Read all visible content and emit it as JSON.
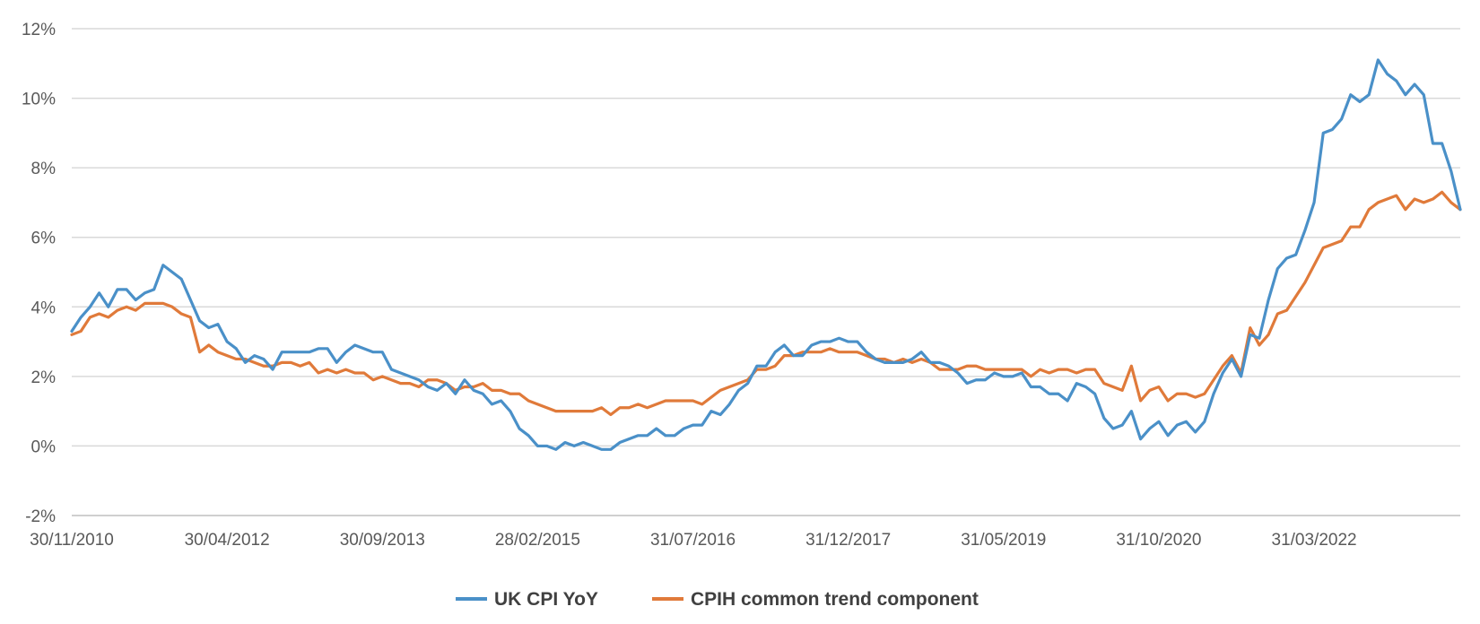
{
  "chart_data": {
    "type": "line",
    "title": "",
    "xlabel": "",
    "ylabel": "",
    "ylim": [
      -2,
      12
    ],
    "y_ticks": [
      -2,
      0,
      2,
      4,
      6,
      8,
      10,
      12
    ],
    "y_tick_labels": [
      "-2%",
      "0%",
      "2%",
      "4%",
      "6%",
      "8%",
      "10%",
      "12%"
    ],
    "x_tick_labels": [
      "30/11/2010",
      "30/04/2012",
      "30/09/2013",
      "28/02/2015",
      "31/07/2016",
      "31/12/2017",
      "31/05/2019",
      "31/10/2020",
      "31/03/2022"
    ],
    "x_start": "30/11/2010",
    "x_end": "31/05/2023",
    "frequency": "monthly",
    "grid": true,
    "legend_position": "bottom",
    "series": [
      {
        "name": "UK CPI YoY",
        "color": "#4a90c8",
        "values": [
          3.3,
          3.7,
          4.0,
          4.4,
          4.0,
          4.5,
          4.5,
          4.2,
          4.4,
          4.5,
          5.2,
          5.0,
          4.8,
          4.2,
          3.6,
          3.4,
          3.5,
          3.0,
          2.8,
          2.4,
          2.6,
          2.5,
          2.2,
          2.7,
          2.7,
          2.7,
          2.7,
          2.8,
          2.8,
          2.4,
          2.7,
          2.9,
          2.8,
          2.7,
          2.7,
          2.2,
          2.1,
          2.0,
          1.9,
          1.7,
          1.6,
          1.8,
          1.5,
          1.9,
          1.6,
          1.5,
          1.2,
          1.3,
          1.0,
          0.5,
          0.3,
          0.0,
          0.0,
          -0.1,
          0.1,
          0.0,
          0.1,
          0.0,
          -0.1,
          -0.1,
          0.1,
          0.2,
          0.3,
          0.3,
          0.5,
          0.3,
          0.3,
          0.5,
          0.6,
          0.6,
          1.0,
          0.9,
          1.2,
          1.6,
          1.8,
          2.3,
          2.3,
          2.7,
          2.9,
          2.6,
          2.6,
          2.9,
          3.0,
          3.0,
          3.1,
          3.0,
          3.0,
          2.7,
          2.5,
          2.4,
          2.4,
          2.4,
          2.5,
          2.7,
          2.4,
          2.4,
          2.3,
          2.1,
          1.8,
          1.9,
          1.9,
          2.1,
          2.0,
          2.0,
          2.1,
          1.7,
          1.7,
          1.5,
          1.5,
          1.3,
          1.8,
          1.7,
          1.5,
          0.8,
          0.5,
          0.6,
          1.0,
          0.2,
          0.5,
          0.7,
          0.3,
          0.6,
          0.7,
          0.4,
          0.7,
          1.5,
          2.1,
          2.5,
          2.0,
          3.2,
          3.1,
          4.2,
          5.1,
          5.4,
          5.5,
          6.2,
          7.0,
          9.0,
          9.1,
          9.4,
          10.1,
          9.9,
          10.1,
          11.1,
          10.7,
          10.5,
          10.1,
          10.4,
          10.1,
          8.7,
          8.7,
          7.9,
          6.8
        ]
      },
      {
        "name": "CPIH common trend component",
        "color": "#e07a3a",
        "values": [
          3.2,
          3.3,
          3.7,
          3.8,
          3.7,
          3.9,
          4.0,
          3.9,
          4.1,
          4.1,
          4.1,
          4.0,
          3.8,
          3.7,
          2.7,
          2.9,
          2.7,
          2.6,
          2.5,
          2.5,
          2.4,
          2.3,
          2.3,
          2.4,
          2.4,
          2.3,
          2.4,
          2.1,
          2.2,
          2.1,
          2.2,
          2.1,
          2.1,
          1.9,
          2.0,
          1.9,
          1.8,
          1.8,
          1.7,
          1.9,
          1.9,
          1.8,
          1.6,
          1.7,
          1.7,
          1.8,
          1.6,
          1.6,
          1.5,
          1.5,
          1.3,
          1.2,
          1.1,
          1.0,
          1.0,
          1.0,
          1.0,
          1.0,
          1.1,
          0.9,
          1.1,
          1.1,
          1.2,
          1.1,
          1.2,
          1.3,
          1.3,
          1.3,
          1.3,
          1.2,
          1.4,
          1.6,
          1.7,
          1.8,
          1.9,
          2.2,
          2.2,
          2.3,
          2.6,
          2.6,
          2.7,
          2.7,
          2.7,
          2.8,
          2.7,
          2.7,
          2.7,
          2.6,
          2.5,
          2.5,
          2.4,
          2.5,
          2.4,
          2.5,
          2.4,
          2.2,
          2.2,
          2.2,
          2.3,
          2.3,
          2.2,
          2.2,
          2.2,
          2.2,
          2.2,
          2.0,
          2.2,
          2.1,
          2.2,
          2.2,
          2.1,
          2.2,
          2.2,
          1.8,
          1.7,
          1.6,
          2.3,
          1.3,
          1.6,
          1.7,
          1.3,
          1.5,
          1.5,
          1.4,
          1.5,
          1.9,
          2.3,
          2.6,
          2.1,
          3.4,
          2.9,
          3.2,
          3.8,
          3.9,
          4.3,
          4.7,
          5.2,
          5.7,
          5.8,
          5.9,
          6.3,
          6.3,
          6.8,
          7.0,
          7.1,
          7.2,
          6.8,
          7.1,
          7.0,
          7.1,
          7.3,
          7.0,
          6.8
        ]
      }
    ]
  }
}
